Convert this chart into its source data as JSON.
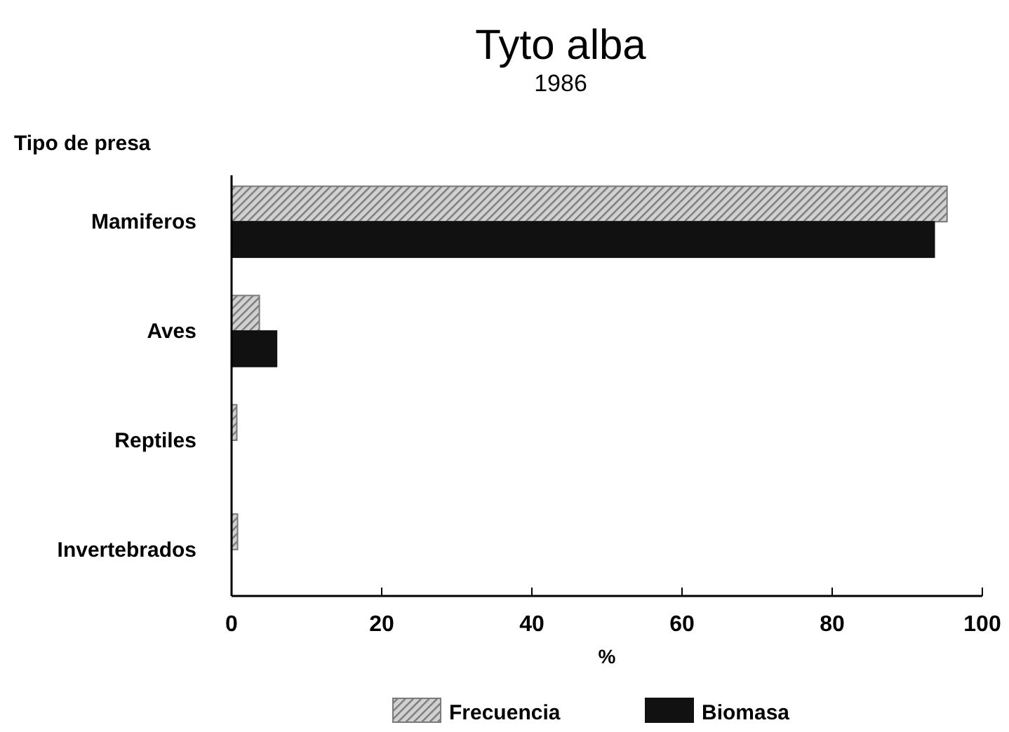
{
  "chart_data": {
    "type": "bar",
    "orientation": "horizontal",
    "title": "Tyto alba",
    "subtitle": "1986",
    "ylabel": "Tipo de presa",
    "xlabel": "%",
    "categories": [
      "Mamiferos",
      "Aves",
      "Reptiles",
      "Invertebrados"
    ],
    "series": [
      {
        "name": "Frecuencia",
        "color": "#7a7a7a",
        "values": [
          95.3,
          3.7,
          0.7,
          0.8
        ]
      },
      {
        "name": "Biomasa",
        "color": "#111111",
        "values": [
          93.6,
          6.0,
          null,
          null
        ]
      }
    ],
    "xlim": [
      0,
      100
    ],
    "xticks": [
      0,
      20,
      40,
      60,
      80,
      100
    ],
    "legend": "bottom",
    "grid": false
  }
}
